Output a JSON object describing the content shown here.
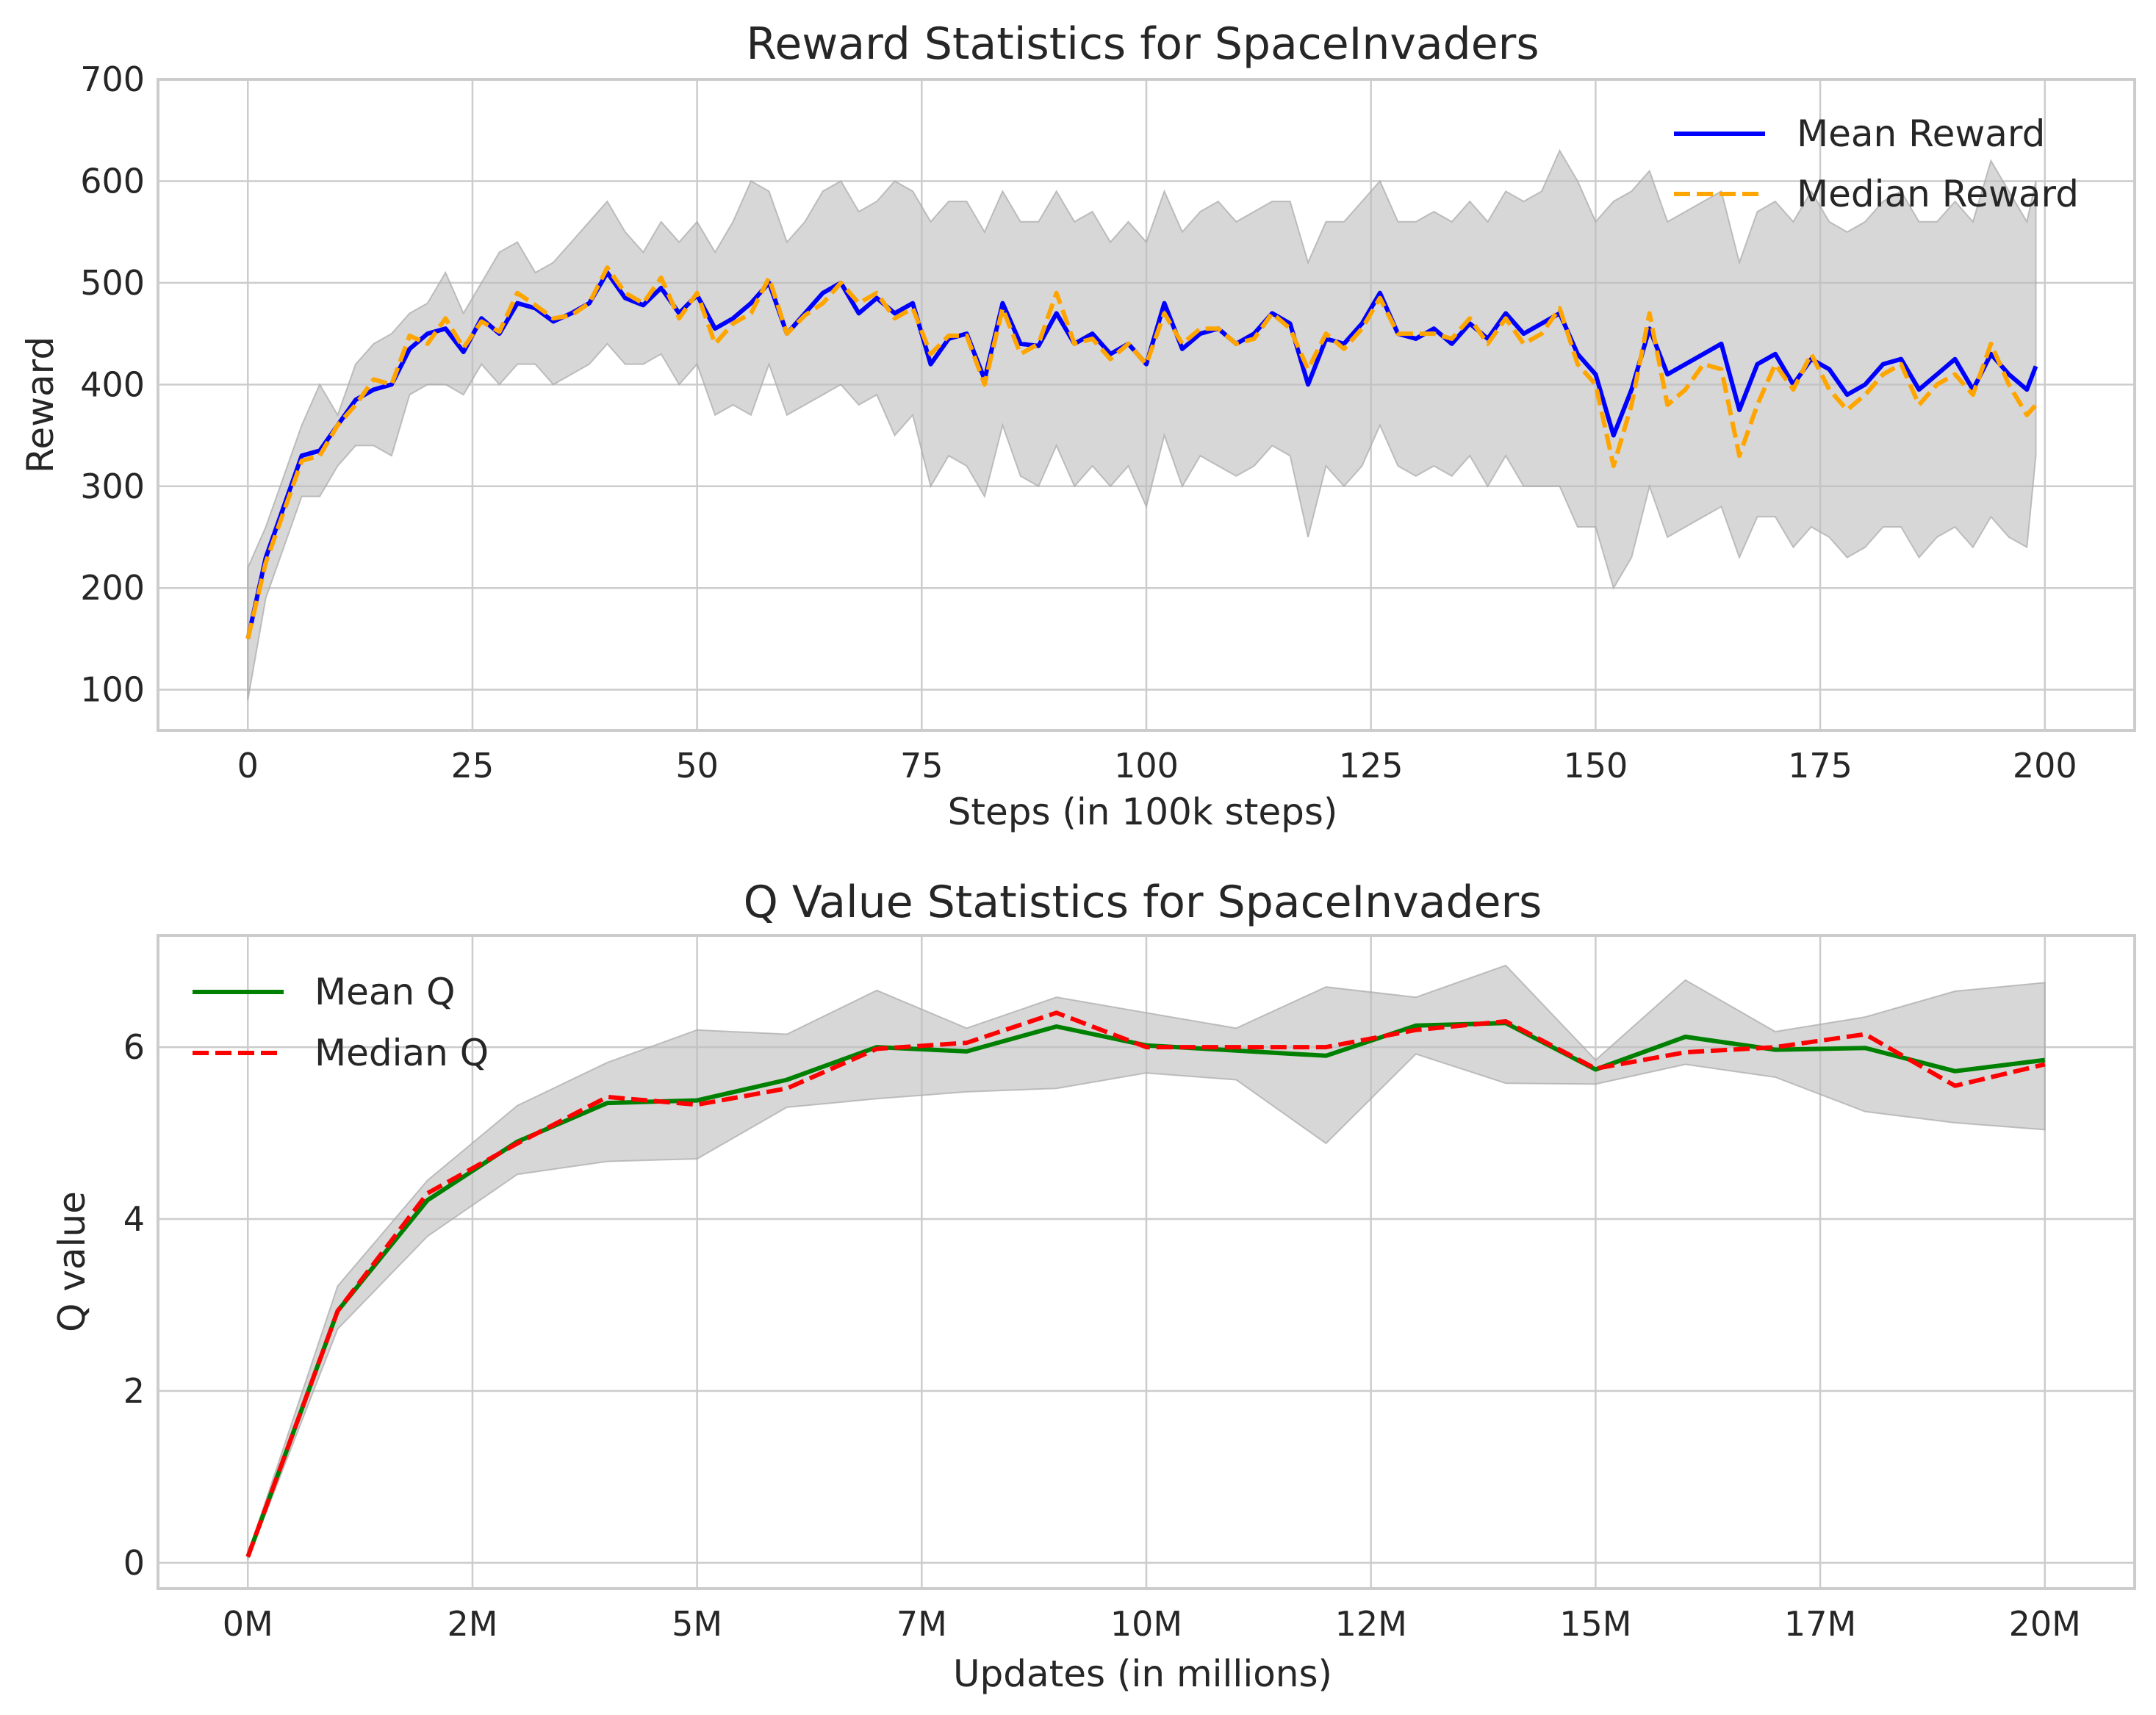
{
  "chart_data": [
    {
      "type": "line",
      "title": "Reward Statistics for SpaceInvaders",
      "xlabel": "Steps (in 100k steps)",
      "ylabel": "Reward",
      "xlim": [
        -10,
        210
      ],
      "ylim": [
        60,
        700
      ],
      "xticks": [
        0,
        25,
        50,
        75,
        100,
        125,
        150,
        175,
        200
      ],
      "yticks": [
        100,
        200,
        300,
        400,
        500,
        600,
        700
      ],
      "grid": true,
      "legend_position": "top-right",
      "x": [
        0,
        2,
        4,
        6,
        8,
        10,
        12,
        14,
        16,
        18,
        20,
        22,
        24,
        26,
        28,
        30,
        32,
        34,
        36,
        38,
        40,
        42,
        44,
        46,
        48,
        50,
        52,
        54,
        56,
        58,
        60,
        62,
        64,
        66,
        68,
        70,
        72,
        74,
        76,
        78,
        80,
        82,
        84,
        86,
        88,
        90,
        92,
        94,
        96,
        98,
        100,
        102,
        104,
        106,
        108,
        110,
        112,
        114,
        116,
        118,
        120,
        122,
        124,
        126,
        128,
        130,
        132,
        134,
        136,
        138,
        140,
        142,
        144,
        146,
        148,
        150,
        152,
        154,
        156,
        158,
        160,
        162,
        164,
        166,
        168,
        170,
        172,
        174,
        176,
        178,
        180,
        182,
        184,
        186,
        188,
        190,
        192,
        194,
        196,
        198,
        199
      ],
      "series": [
        {
          "name": "Mean Reward",
          "color": "#0000ff",
          "style": "solid",
          "values": [
            150,
            230,
            280,
            330,
            335,
            360,
            385,
            395,
            400,
            435,
            450,
            455,
            432,
            465,
            450,
            480,
            475,
            462,
            470,
            480,
            510,
            485,
            478,
            495,
            470,
            488,
            455,
            465,
            480,
            500,
            450,
            470,
            490,
            500,
            470,
            485,
            470,
            480,
            420,
            445,
            450,
            405,
            480,
            440,
            438,
            470,
            440,
            450,
            430,
            440,
            420,
            480,
            435,
            450,
            455,
            440,
            450,
            470,
            460,
            400,
            445,
            440,
            460,
            490,
            450,
            445,
            455,
            440,
            460,
            445,
            470,
            450,
            460,
            470,
            430,
            410,
            350,
            395,
            455,
            410,
            420,
            430,
            440,
            375,
            420,
            430,
            400,
            425,
            415,
            390,
            400,
            420,
            425,
            395,
            410,
            425,
            395,
            430,
            410,
            395,
            418
          ]
        },
        {
          "name": "Median Reward",
          "color": "#ffa500",
          "style": "dashed",
          "values": [
            150,
            225,
            275,
            325,
            330,
            360,
            380,
            405,
            400,
            448,
            440,
            465,
            436,
            462,
            452,
            490,
            478,
            465,
            468,
            480,
            515,
            490,
            480,
            505,
            465,
            490,
            440,
            460,
            470,
            505,
            450,
            468,
            480,
            500,
            480,
            490,
            465,
            475,
            430,
            448,
            448,
            400,
            475,
            430,
            440,
            490,
            440,
            445,
            425,
            440,
            420,
            470,
            440,
            455,
            455,
            440,
            445,
            470,
            455,
            415,
            450,
            435,
            455,
            485,
            450,
            450,
            450,
            445,
            465,
            440,
            465,
            440,
            450,
            475,
            420,
            400,
            320,
            380,
            470,
            380,
            395,
            420,
            415,
            330,
            380,
            420,
            395,
            430,
            395,
            375,
            390,
            410,
            420,
            380,
            400,
            410,
            390,
            440,
            400,
            370,
            380
          ]
        }
      ],
      "band": {
        "upper": [
          220,
          260,
          310,
          360,
          400,
          370,
          420,
          440,
          450,
          470,
          480,
          510,
          470,
          500,
          530,
          540,
          510,
          520,
          540,
          560,
          580,
          550,
          530,
          560,
          540,
          560,
          530,
          560,
          600,
          590,
          540,
          560,
          590,
          600,
          570,
          580,
          600,
          590,
          560,
          580,
          580,
          550,
          590,
          560,
          560,
          590,
          560,
          570,
          540,
          560,
          540,
          590,
          550,
          570,
          580,
          560,
          570,
          580,
          580,
          520,
          560,
          560,
          580,
          600,
          560,
          560,
          570,
          560,
          580,
          560,
          590,
          580,
          590,
          630,
          600,
          560,
          580,
          590,
          610,
          560,
          570,
          580,
          590,
          520,
          570,
          580,
          560,
          590,
          560,
          550,
          560,
          580,
          590,
          560,
          560,
          580,
          560,
          620,
          590,
          560,
          600
        ],
        "lower": [
          90,
          190,
          240,
          290,
          290,
          320,
          340,
          340,
          330,
          390,
          400,
          400,
          390,
          420,
          400,
          420,
          420,
          400,
          410,
          420,
          440,
          420,
          420,
          430,
          400,
          420,
          370,
          380,
          370,
          420,
          370,
          380,
          390,
          400,
          380,
          390,
          350,
          370,
          300,
          330,
          320,
          290,
          360,
          310,
          300,
          340,
          300,
          320,
          300,
          320,
          280,
          350,
          300,
          330,
          320,
          310,
          320,
          340,
          330,
          250,
          320,
          300,
          320,
          360,
          320,
          310,
          320,
          310,
          330,
          300,
          330,
          300,
          300,
          300,
          260,
          260,
          200,
          230,
          300,
          250,
          260,
          270,
          280,
          230,
          270,
          270,
          240,
          260,
          250,
          230,
          240,
          260,
          260,
          230,
          250,
          260,
          240,
          270,
          250,
          240,
          330
        ]
      }
    },
    {
      "type": "line",
      "title": "Q Value Statistics for SpaceInvaders",
      "xlabel": "Updates (in millions)",
      "ylabel": "Q value",
      "xlim": [
        -1,
        21
      ],
      "ylim": [
        -0.3,
        7.3
      ],
      "xticks": [
        0,
        2.5,
        5,
        7.5,
        10,
        12.5,
        15,
        17.5,
        20
      ],
      "xticklabels": [
        "0M",
        "2M",
        "5M",
        "7M",
        "10M",
        "12M",
        "15M",
        "17M",
        "20M"
      ],
      "yticks": [
        0,
        2,
        4,
        6
      ],
      "grid": true,
      "legend_position": "top-left",
      "x": [
        0,
        1,
        2,
        3,
        4,
        5,
        6,
        7,
        8,
        9,
        10,
        11,
        12,
        13,
        14,
        15,
        16,
        17,
        18,
        19,
        20
      ],
      "series": [
        {
          "name": "Mean Q",
          "color": "#008000",
          "style": "solid",
          "values": [
            0.07,
            2.93,
            4.22,
            4.9,
            5.35,
            5.38,
            5.62,
            6.0,
            5.95,
            6.24,
            6.02,
            5.96,
            5.9,
            6.25,
            6.28,
            5.74,
            6.12,
            5.97,
            5.99,
            5.72,
            5.85
          ]
        },
        {
          "name": "Median Q",
          "color": "#ff0000",
          "style": "dashed",
          "values": [
            0.07,
            2.93,
            4.3,
            4.88,
            5.42,
            5.33,
            5.52,
            5.98,
            6.05,
            6.4,
            6.0,
            6.0,
            6.0,
            6.2,
            6.3,
            5.75,
            5.94,
            6.0,
            6.15,
            5.55,
            5.8
          ]
        }
      ],
      "band": {
        "upper": [
          0.1,
          3.22,
          4.45,
          5.32,
          5.82,
          6.2,
          6.15,
          6.66,
          6.22,
          6.58,
          6.4,
          6.22,
          6.7,
          6.58,
          6.95,
          5.85,
          6.78,
          6.18,
          6.35,
          6.65,
          6.75
        ],
        "lower": [
          0.04,
          2.72,
          3.8,
          4.52,
          4.67,
          4.7,
          5.3,
          5.4,
          5.48,
          5.52,
          5.7,
          5.62,
          4.88,
          5.92,
          5.58,
          5.57,
          5.8,
          5.65,
          5.25,
          5.12,
          5.04
        ]
      }
    }
  ]
}
